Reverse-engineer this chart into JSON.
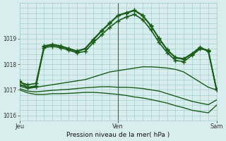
{
  "background_color": "#d8eeee",
  "grid_color": "#a8cece",
  "line_color": "#1a5c1a",
  "xlabel": "Pression niveau de la mer( hPa )",
  "ylim": [
    1015.8,
    1020.4
  ],
  "yticks": [
    1016,
    1017,
    1018,
    1019
  ],
  "day_labels": [
    "Jeu",
    "Ven",
    "Sam"
  ],
  "day_positions": [
    0,
    36,
    72
  ],
  "lines": [
    {
      "x": [
        0,
        3,
        6,
        9,
        12,
        15,
        18,
        21,
        24,
        27,
        30,
        33,
        36,
        39,
        42,
        45,
        48,
        51,
        54,
        57,
        60,
        63,
        66,
        69,
        72
      ],
      "y": [
        1017.15,
        1017.05,
        1017.1,
        1017.15,
        1017.2,
        1017.25,
        1017.3,
        1017.35,
        1017.4,
        1017.5,
        1017.6,
        1017.7,
        1017.75,
        1017.8,
        1017.85,
        1017.9,
        1017.9,
        1017.88,
        1017.85,
        1017.8,
        1017.7,
        1017.5,
        1017.3,
        1017.1,
        1017.0
      ],
      "marker": null,
      "lw": 1.0
    },
    {
      "x": [
        0,
        3,
        6,
        9,
        12,
        15,
        18,
        21,
        24,
        27,
        30,
        33,
        36,
        39,
        42,
        45,
        48,
        51,
        54,
        57,
        60,
        63,
        66,
        69,
        72
      ],
      "y": [
        1017.05,
        1016.95,
        1016.92,
        1016.95,
        1016.98,
        1017.0,
        1017.02,
        1017.05,
        1017.08,
        1017.1,
        1017.12,
        1017.12,
        1017.1,
        1017.1,
        1017.08,
        1017.05,
        1017.0,
        1016.95,
        1016.85,
        1016.75,
        1016.65,
        1016.55,
        1016.48,
        1016.42,
        1016.6
      ],
      "marker": null,
      "lw": 1.0
    },
    {
      "x": [
        0,
        3,
        6,
        9,
        12,
        15,
        18,
        21,
        24,
        27,
        30,
        33,
        36,
        39,
        42,
        45,
        48,
        51,
        54,
        57,
        60,
        63,
        66,
        69,
        72
      ],
      "y": [
        1017.0,
        1016.88,
        1016.82,
        1016.82,
        1016.85,
        1016.85,
        1016.86,
        1016.88,
        1016.9,
        1016.9,
        1016.88,
        1016.85,
        1016.82,
        1016.78,
        1016.72,
        1016.68,
        1016.62,
        1016.55,
        1016.48,
        1016.38,
        1016.3,
        1016.2,
        1016.15,
        1016.1,
        1016.4
      ],
      "marker": null,
      "lw": 1.0
    },
    {
      "x": [
        0,
        3,
        6,
        9,
        12,
        15,
        18,
        21,
        24,
        27,
        30,
        33,
        36,
        39,
        42,
        45,
        48,
        51,
        54,
        57,
        60,
        63,
        66,
        69,
        72
      ],
      "y": [
        1017.2,
        1017.1,
        1017.15,
        1018.65,
        1018.7,
        1018.65,
        1018.55,
        1018.45,
        1018.5,
        1018.85,
        1019.15,
        1019.45,
        1019.7,
        1019.85,
        1019.95,
        1019.75,
        1019.35,
        1018.85,
        1018.45,
        1018.15,
        1018.1,
        1018.35,
        1018.6,
        1018.55,
        1017.0
      ],
      "marker": "+",
      "ms": 4.5,
      "lw": 1.2
    },
    {
      "x": [
        0,
        3,
        6,
        9,
        12,
        15,
        18,
        21,
        24,
        27,
        30,
        33,
        36,
        39,
        42,
        45,
        48,
        51,
        54,
        57,
        60,
        63,
        66,
        69,
        72
      ],
      "y": [
        1017.3,
        1017.2,
        1017.25,
        1018.7,
        1018.75,
        1018.7,
        1018.6,
        1018.5,
        1018.6,
        1018.95,
        1019.3,
        1019.6,
        1019.9,
        1020.0,
        1020.1,
        1019.9,
        1019.5,
        1019.0,
        1018.55,
        1018.25,
        1018.2,
        1018.4,
        1018.65,
        1018.5,
        1017.0
      ],
      "marker": "+",
      "ms": 4.5,
      "lw": 1.2
    },
    {
      "x": [
        0,
        3,
        6,
        9,
        12,
        15,
        18,
        21,
        24,
        27,
        30,
        33,
        36,
        39,
        42,
        45,
        48,
        51,
        54,
        57,
        60,
        63,
        66,
        69,
        72
      ],
      "y": [
        1017.35,
        1017.08,
        1017.12,
        1018.72,
        1018.78,
        1018.72,
        1018.62,
        1018.52,
        1018.62,
        1018.98,
        1019.32,
        1019.62,
        1019.92,
        1020.02,
        1020.12,
        1019.92,
        1019.52,
        1019.02,
        1018.57,
        1018.27,
        1018.22,
        1018.42,
        1018.67,
        1018.52,
        1017.02
      ],
      "marker": "+",
      "ms": 4.5,
      "lw": 1.2
    }
  ],
  "vline_positions": [
    36,
    72
  ],
  "xlim": [
    0,
    72
  ]
}
